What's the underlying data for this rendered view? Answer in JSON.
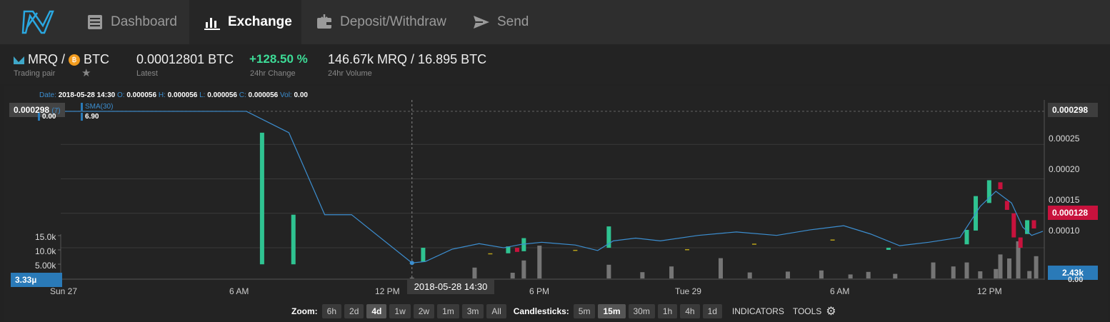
{
  "nav": {
    "tabs": [
      {
        "label": "Dashboard",
        "icon": "dashboard-icon"
      },
      {
        "label": "Exchange",
        "icon": "bar-chart-icon"
      },
      {
        "label": "Deposit/Withdraw",
        "icon": "wallet-icon"
      },
      {
        "label": "Send",
        "icon": "send-icon"
      }
    ],
    "active_tab": "Exchange"
  },
  "pair": {
    "base": "MRQ",
    "separator": "/",
    "quote": "BTC",
    "label": "Trading pair"
  },
  "stats": {
    "latest_value": "0.00012801 BTC",
    "latest_label": "Latest",
    "change_value": "+128.50 %",
    "change_label": "24hr Change",
    "volume_value": "146.67k MRQ / 16.895 BTC",
    "volume_label": "24hr Volume"
  },
  "ohlc": {
    "date_label": "Date:",
    "date": "2018-05-28 14:30",
    "o_label": "O:",
    "o": "0.000056",
    "h_label": "H:",
    "h": "0.000056",
    "l_label": "L:",
    "l": "0.000056",
    "c_label": "C:",
    "c": "0.000056",
    "vol_label": "Vol:",
    "vol": "0.00"
  },
  "indicators": {
    "sma_label": "SMA(30)",
    "sma_value": "6.90",
    "left_value": "0.00",
    "left_tag": "0.000298",
    "left_tag_suffix": "(7)"
  },
  "price_axis": {
    "ticks": [
      "0.00025",
      "0.00020",
      "0.00015",
      "0.00010"
    ],
    "top_tag": "0.000298",
    "current_tag": "0.000128"
  },
  "volume_axis": {
    "ticks": [
      "15.0k",
      "10.0k",
      "5.00k"
    ],
    "left_tag": "3.33µ",
    "right_tag": "2.43k",
    "right_zero": "0.00"
  },
  "time_axis": {
    "labels": [
      "Sun 27",
      "6 AM",
      "12 PM",
      "6 PM",
      "Tue 29",
      "6 AM",
      "12 PM"
    ],
    "crosshair": "2018-05-28 14:30"
  },
  "controls": {
    "zoom_label": "Zoom:",
    "zoom_options": [
      "6h",
      "2d",
      "4d",
      "1w",
      "2w",
      "1m",
      "3m",
      "All"
    ],
    "zoom_selected": "4d",
    "candle_label": "Candlesticks:",
    "candle_options": [
      "5m",
      "15m",
      "30m",
      "1h",
      "4h",
      "1d"
    ],
    "candle_selected": "15m",
    "indicators_label": "INDICATORS",
    "tools_label": "TOOLS"
  },
  "colors": {
    "accent": "#2a7ab8",
    "up": "#2fc391",
    "down": "#c8123d"
  },
  "chart_data": {
    "type": "candlestick",
    "xlabels": [
      "Sun 27",
      "6 AM",
      "12 PM",
      "6 PM",
      "Tue 29",
      "6 AM",
      "12 PM"
    ],
    "ylim": [
      7e-05,
      0.0003
    ],
    "price_ticks": [
      0.0001,
      0.00015,
      0.0002,
      0.00025
    ],
    "volume_ticks": [
      5000,
      10000,
      15000
    ],
    "candles": [
      {
        "t": 0.0,
        "o": 0.000298,
        "c": 0.000298
      },
      {
        "t": 9.0,
        "o": 7.6e-05,
        "c": 0.000267
      },
      {
        "t": 10.4,
        "o": 7.6e-05,
        "c": 0.000148
      },
      {
        "t": 15.7,
        "o": 7.8e-05,
        "c": 7.8e-05
      },
      {
        "t": 16.2,
        "o": 8e-05,
        "c": 0.0001
      },
      {
        "t": 19.2,
        "o": 9.2e-05,
        "c": 9.2e-05
      },
      {
        "t": 20.0,
        "o": 9.2e-05,
        "c": 0.000102
      },
      {
        "t": 20.4,
        "o": 0.0001,
        "c": 9.4e-05
      },
      {
        "t": 20.7,
        "o": 9.5e-05,
        "c": 0.000114
      },
      {
        "t": 23.0,
        "o": 9.7e-05,
        "c": 9.7e-05
      },
      {
        "t": 24.5,
        "o": 0.0001,
        "c": 0.000131
      },
      {
        "t": 28.0,
        "o": 9.8e-05,
        "c": 9.8e-05
      },
      {
        "t": 31.0,
        "o": 0.000106,
        "c": 0.000106
      },
      {
        "t": 34.5,
        "o": 0.000112,
        "c": 0.000112
      },
      {
        "t": 37.0,
        "o": 9.7e-05,
        "c": 0.0001
      },
      {
        "t": 40.5,
        "o": 0.000105,
        "c": 0.000126
      },
      {
        "t": 40.9,
        "o": 0.000125,
        "c": 0.000175
      },
      {
        "t": 41.5,
        "o": 0.000165,
        "c": 0.000198
      },
      {
        "t": 42.0,
        "o": 0.000195,
        "c": 0.000185
      },
      {
        "t": 42.3,
        "o": 0.000168,
        "c": 0.000155
      },
      {
        "t": 42.6,
        "o": 0.00015,
        "c": 0.000115
      },
      {
        "t": 42.9,
        "o": 0.000115,
        "c": 0.0001
      },
      {
        "t": 43.2,
        "o": 0.00012,
        "c": 0.00014
      },
      {
        "t": 43.5,
        "o": 0.00014,
        "c": 0.000128
      }
    ],
    "sma": [
      [
        0.0,
        0.000298
      ],
      [
        8.3,
        0.000298
      ],
      [
        10.2,
        0.000267
      ],
      [
        11.8,
        0.000148
      ],
      [
        13.0,
        0.000148
      ],
      [
        15.7,
        7.8e-05
      ],
      [
        16.3,
        8e-05
      ],
      [
        17.5,
        9.8e-05
      ],
      [
        18.7,
        0.000106
      ],
      [
        19.8,
        0.0001
      ],
      [
        20.6,
        0.000105
      ],
      [
        21.5,
        0.000108
      ],
      [
        23.0,
        0.000104
      ],
      [
        24.0,
        9.6e-05
      ],
      [
        24.7,
        0.00011
      ],
      [
        25.7,
        0.000114
      ],
      [
        26.8,
        0.00011
      ],
      [
        28.5,
        0.000118
      ],
      [
        30.2,
        0.000123
      ],
      [
        32.0,
        0.000118
      ],
      [
        33.5,
        0.000126
      ],
      [
        35.0,
        0.000132
      ],
      [
        36.2,
        0.00012
      ],
      [
        37.5,
        0.000103
      ],
      [
        38.8,
        0.000108
      ],
      [
        40.2,
        0.000115
      ],
      [
        41.1,
        0.00016
      ],
      [
        41.8,
        0.000182
      ],
      [
        42.5,
        0.000165
      ],
      [
        43.0,
        0.00013
      ],
      [
        43.4,
        0.000118
      ],
      [
        43.9,
        0.000124
      ]
    ],
    "volumes": [
      [
        0.0,
        0
      ],
      [
        9.0,
        0
      ],
      [
        10.4,
        0
      ],
      [
        15.7,
        300
      ],
      [
        18.5,
        3800
      ],
      [
        20.2,
        2000
      ],
      [
        20.7,
        6300
      ],
      [
        21.4,
        11500
      ],
      [
        24.5,
        4800
      ],
      [
        26.0,
        2200
      ],
      [
        27.3,
        4200
      ],
      [
        29.5,
        7100
      ],
      [
        30.8,
        2100
      ],
      [
        32.5,
        2400
      ],
      [
        34.0,
        2800
      ],
      [
        35.3,
        1400
      ],
      [
        36.1,
        2300
      ],
      [
        37.3,
        1600
      ],
      [
        39.0,
        5600
      ],
      [
        39.9,
        4200
      ],
      [
        40.5,
        5600
      ],
      [
        41.1,
        2500
      ],
      [
        41.8,
        3300
      ],
      [
        42.0,
        8400
      ],
      [
        42.4,
        7000
      ],
      [
        42.8,
        13000
      ],
      [
        43.3,
        2600
      ],
      [
        43.6,
        7800
      ]
    ],
    "tmax": 43.9
  }
}
